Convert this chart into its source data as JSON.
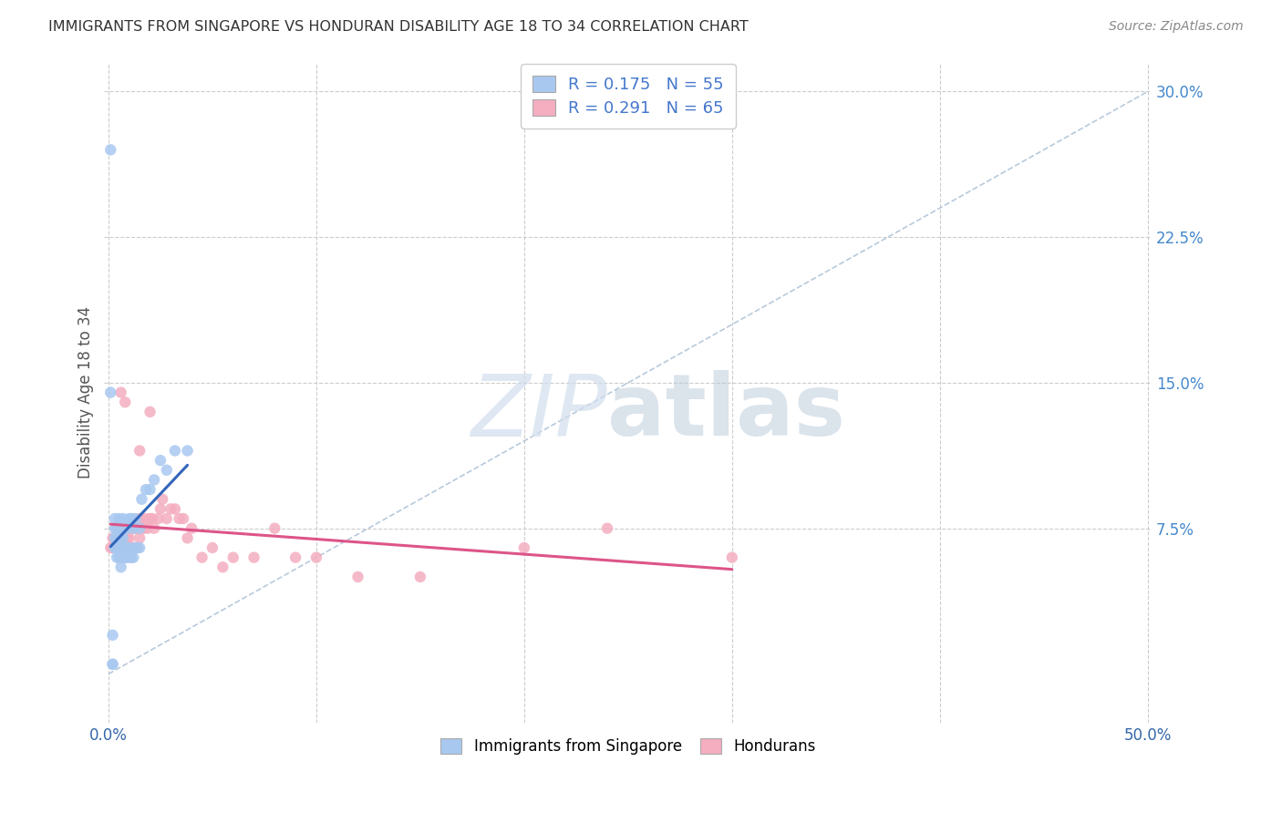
{
  "title": "IMMIGRANTS FROM SINGAPORE VS HONDURAN DISABILITY AGE 18 TO 34 CORRELATION CHART",
  "source": "Source: ZipAtlas.com",
  "ylabel": "Disability Age 18 to 34",
  "xlim": [
    -0.002,
    0.502
  ],
  "ylim": [
    -0.025,
    0.315
  ],
  "ytick_right_labels": [
    "7.5%",
    "15.0%",
    "22.5%",
    "30.0%"
  ],
  "ytick_right_values": [
    0.075,
    0.15,
    0.225,
    0.3
  ],
  "singapore_color": "#a8c8f0",
  "honduran_color": "#f4aec0",
  "singapore_R": 0.175,
  "singapore_N": 55,
  "honduran_R": 0.291,
  "honduran_N": 65,
  "background_color": "#ffffff",
  "grid_color": "#cccccc",
  "ref_line_color": "#b0c4d8",
  "sg_line_color": "#3366bb",
  "hn_line_color": "#dd5588",
  "singapore_x": [
    0.001,
    0.002,
    0.002,
    0.002,
    0.003,
    0.003,
    0.003,
    0.003,
    0.004,
    0.004,
    0.004,
    0.004,
    0.004,
    0.005,
    0.005,
    0.005,
    0.005,
    0.005,
    0.005,
    0.006,
    0.006,
    0.006,
    0.006,
    0.006,
    0.007,
    0.007,
    0.007,
    0.007,
    0.008,
    0.008,
    0.008,
    0.009,
    0.009,
    0.009,
    0.01,
    0.01,
    0.01,
    0.011,
    0.011,
    0.012,
    0.012,
    0.013,
    0.013,
    0.014,
    0.015,
    0.015,
    0.016,
    0.018,
    0.02,
    0.022,
    0.025,
    0.028,
    0.032,
    0.038,
    0.001
  ],
  "singapore_y": [
    0.27,
    0.005,
    0.005,
    0.02,
    0.065,
    0.07,
    0.075,
    0.08,
    0.06,
    0.065,
    0.065,
    0.07,
    0.075,
    0.06,
    0.065,
    0.065,
    0.07,
    0.075,
    0.08,
    0.055,
    0.06,
    0.065,
    0.07,
    0.075,
    0.06,
    0.065,
    0.07,
    0.08,
    0.06,
    0.065,
    0.075,
    0.06,
    0.065,
    0.075,
    0.06,
    0.065,
    0.08,
    0.06,
    0.08,
    0.06,
    0.075,
    0.065,
    0.08,
    0.065,
    0.075,
    0.065,
    0.09,
    0.095,
    0.095,
    0.1,
    0.11,
    0.105,
    0.115,
    0.115,
    0.145
  ],
  "honduran_x": [
    0.001,
    0.002,
    0.002,
    0.003,
    0.003,
    0.004,
    0.004,
    0.005,
    0.005,
    0.005,
    0.006,
    0.006,
    0.006,
    0.007,
    0.007,
    0.007,
    0.008,
    0.008,
    0.009,
    0.009,
    0.01,
    0.01,
    0.011,
    0.011,
    0.012,
    0.012,
    0.013,
    0.013,
    0.014,
    0.015,
    0.015,
    0.016,
    0.017,
    0.018,
    0.019,
    0.02,
    0.021,
    0.022,
    0.024,
    0.025,
    0.026,
    0.028,
    0.03,
    0.032,
    0.034,
    0.036,
    0.038,
    0.04,
    0.045,
    0.05,
    0.055,
    0.06,
    0.07,
    0.08,
    0.09,
    0.1,
    0.12,
    0.15,
    0.2,
    0.24,
    0.3,
    0.006,
    0.008,
    0.015,
    0.02
  ],
  "honduran_y": [
    0.065,
    0.065,
    0.07,
    0.065,
    0.07,
    0.07,
    0.075,
    0.065,
    0.07,
    0.075,
    0.065,
    0.07,
    0.075,
    0.065,
    0.07,
    0.075,
    0.065,
    0.07,
    0.065,
    0.07,
    0.065,
    0.07,
    0.065,
    0.075,
    0.065,
    0.075,
    0.065,
    0.075,
    0.075,
    0.07,
    0.08,
    0.075,
    0.075,
    0.08,
    0.075,
    0.08,
    0.08,
    0.075,
    0.08,
    0.085,
    0.09,
    0.08,
    0.085,
    0.085,
    0.08,
    0.08,
    0.07,
    0.075,
    0.06,
    0.065,
    0.055,
    0.06,
    0.06,
    0.075,
    0.06,
    0.06,
    0.05,
    0.05,
    0.065,
    0.075,
    0.06,
    0.145,
    0.14,
    0.115,
    0.135
  ]
}
